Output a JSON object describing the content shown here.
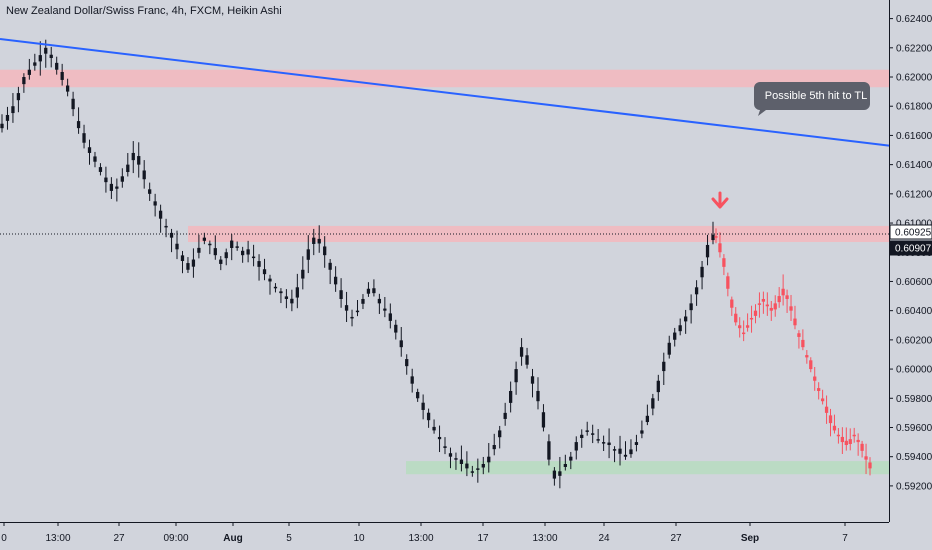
{
  "chart_header": {
    "title": "New Zealand Dollar/Swiss Franc, 4h, FXCM, Heikin Ashi"
  },
  "annotation": {
    "callout_text": "Possible 5th hit to TL",
    "arrow_icon": "arrow-down-icon"
  },
  "price_labels": {
    "horizontal_line_price": "0.60925",
    "current_price": "0.60907"
  },
  "colors": {
    "background": "#d1d4dc",
    "candle": "#131722",
    "projection": "#f7525f",
    "trendline": "#2962ff",
    "resistance_zone": "#f5b7bd",
    "support_zone": "#b7dcc0",
    "callout": "#5d606b",
    "arrow": "#f7525f"
  },
  "chart_data": {
    "type": "candlestick",
    "title": "New Zealand Dollar/Swiss Franc, 4h, FXCM, Heikin Ashi",
    "timeframe": "4h",
    "chart_style": "Heikin Ashi",
    "y_axis": {
      "side": "right",
      "ylim": [
        0.591,
        0.625
      ],
      "ticks": [
        "0.62400",
        "0.62200",
        "0.62000",
        "0.61800",
        "0.61600",
        "0.61400",
        "0.61200",
        "0.61000",
        "0.60800",
        "0.60600",
        "0.60400",
        "0.60200",
        "0.60000",
        "0.59800",
        "0.59600",
        "0.59400",
        "0.59200"
      ]
    },
    "x_axis": {
      "ticks": [
        "0",
        "13:00",
        "27",
        "09:00",
        "Aug",
        "5",
        "10",
        "13:00",
        "17",
        "13:00",
        "24",
        "27",
        "Sep",
        "7"
      ],
      "bold_ticks": [
        "Aug",
        "Sep"
      ]
    },
    "grid": false,
    "zones": [
      {
        "kind": "resistance",
        "from": 0.6193,
        "to": 0.6205
      },
      {
        "kind": "resistance",
        "from": 0.6087,
        "to": 0.6098
      },
      {
        "kind": "support",
        "from": 0.5928,
        "to": 0.5937
      }
    ],
    "trendline": {
      "from_price": 0.6226,
      "to_price": 0.6153
    },
    "actual_closes": [
      0.6168,
      0.6174,
      0.618,
      0.6189,
      0.62,
      0.6205,
      0.621,
      0.6215,
      0.622,
      0.6213,
      0.6205,
      0.6198,
      0.619,
      0.6178,
      0.6165,
      0.6155,
      0.6148,
      0.6142,
      0.6135,
      0.6128,
      0.6122,
      0.6125,
      0.6132,
      0.614,
      0.6148,
      0.614,
      0.613,
      0.612,
      0.6112,
      0.6103,
      0.6097,
      0.609,
      0.6082,
      0.6074,
      0.6068,
      0.6075,
      0.6083,
      0.609,
      0.6085,
      0.6078,
      0.6072,
      0.608,
      0.6088,
      0.6083,
      0.6078,
      0.6082,
      0.6076,
      0.607,
      0.6065,
      0.606,
      0.6056,
      0.6052,
      0.6048,
      0.6045,
      0.6056,
      0.6068,
      0.6082,
      0.609,
      0.6086,
      0.6078,
      0.6068,
      0.6058,
      0.6048,
      0.604,
      0.6035,
      0.604,
      0.6048,
      0.6055,
      0.6052,
      0.6045,
      0.604,
      0.6033,
      0.6025,
      0.6015,
      0.6002,
      0.599,
      0.598,
      0.5972,
      0.5965,
      0.5958,
      0.5952,
      0.5946,
      0.594,
      0.5938,
      0.5935,
      0.5932,
      0.593,
      0.5932,
      0.5935,
      0.594,
      0.5948,
      0.5958,
      0.597,
      0.5985,
      0.6,
      0.6015,
      0.6003,
      0.599,
      0.5978,
      0.596,
      0.5938,
      0.5925,
      0.593,
      0.5935,
      0.594,
      0.595,
      0.5955,
      0.5958,
      0.5956,
      0.5952,
      0.595,
      0.5948,
      0.5945,
      0.5942,
      0.594,
      0.5945,
      0.595,
      0.5958,
      0.5968,
      0.598,
      0.5992,
      0.6005,
      0.6018,
      0.6025,
      0.603,
      0.6036,
      0.6045,
      0.6056,
      0.607,
      0.6085,
      0.6092
    ],
    "projected_closes": [
      0.609,
      0.608,
      0.607,
      0.6055,
      0.6042,
      0.6032,
      0.6028,
      0.6025,
      0.603,
      0.6035,
      0.604,
      0.6045,
      0.6048,
      0.6043,
      0.604,
      0.6045,
      0.605,
      0.6055,
      0.6048,
      0.604,
      0.603,
      0.6022,
      0.6015,
      0.6008,
      0.6,
      0.5992,
      0.5985,
      0.5978,
      0.597,
      0.5963,
      0.5958,
      0.5955,
      0.595,
      0.5948,
      0.5952,
      0.5955,
      0.595,
      0.5944,
      0.5938,
      0.5932
    ]
  }
}
